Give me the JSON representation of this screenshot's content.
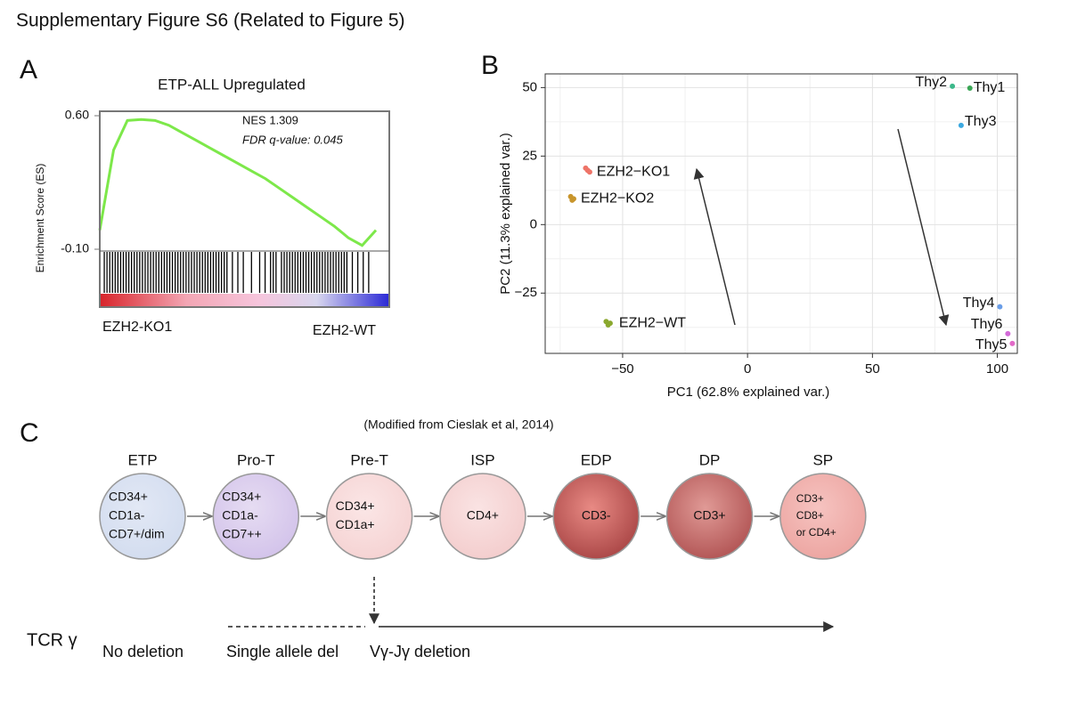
{
  "title": "Supplementary Figure S6  (Related to Figure 5)",
  "panel_labels": [
    "A",
    "B",
    "C"
  ],
  "chart_data": [
    {
      "type": "line",
      "title": "ETP-ALL Upregulated",
      "ylabel": "Enrichment Score (ES)",
      "values": [
        0,
        0.42,
        0.575,
        0.58,
        0.575,
        0.55,
        0.51,
        0.47,
        0.43,
        0.39,
        0.35,
        0.31,
        0.27,
        0.22,
        0.17,
        0.12,
        0.07,
        0.02,
        -0.04,
        -0.08,
        0
      ],
      "color": "#7de84a",
      "ylim": [
        -0.1,
        0.6
      ],
      "yticks": [
        {
          "value": 0.6,
          "label": "0.60"
        },
        {
          "value": -0.1,
          "label": "-0.10"
        }
      ],
      "annotations": [
        "NES  1.309",
        "FDR q-value:  0.045"
      ],
      "left_label": "EZH2-KO1",
      "right_label": "EZH2-WT",
      "hits": [
        1,
        2,
        3,
        4,
        5,
        6,
        7,
        8,
        9,
        10,
        11,
        12,
        13,
        14,
        15,
        16,
        17,
        18,
        19,
        20,
        21,
        22,
        23,
        24,
        25,
        26,
        27,
        28,
        29,
        30,
        31,
        32,
        33,
        34,
        35,
        36,
        37,
        38,
        39,
        40,
        41,
        42,
        43,
        44,
        45,
        46,
        48,
        50,
        52,
        55,
        58,
        60,
        62,
        63,
        64,
        66,
        67,
        68,
        69,
        70,
        71,
        72,
        73,
        74,
        75,
        76,
        77,
        78,
        79,
        80,
        81,
        82,
        83,
        84,
        85,
        86,
        87,
        88,
        89,
        90,
        92,
        94,
        96,
        98
      ]
    },
    {
      "type": "scatter",
      "xlabel": "PC1 (62.8% explained var.)",
      "ylabel": "PC2 (11.3% explained var.)",
      "xlim": [
        -81,
        108
      ],
      "ylim": [
        -47,
        55
      ],
      "xticks": [
        {
          "value": -50,
          "label": "−50"
        },
        0,
        50,
        100
      ],
      "yticks": [
        {
          "value": -25,
          "label": "−25"
        },
        0,
        25,
        50
      ],
      "minor_xticks": [
        -75,
        -25,
        25,
        75
      ],
      "minor_yticks": [
        -37.5,
        -12.5,
        12.5,
        37.5
      ],
      "grid": true,
      "series": [
        {
          "name": "EZH2−KO1",
          "color": "#ee7468",
          "x": [
            -64.8,
            -64.0,
            -63.2
          ],
          "values": [
            20.6,
            19.8,
            19.2
          ]
        },
        {
          "name": "EZH2−KO2",
          "color": "#c8952c",
          "x": [
            -70.8,
            -70.2,
            -69.6
          ],
          "values": [
            10.2,
            8.9,
            9.4
          ]
        },
        {
          "name": "EZH2−WT",
          "color": "#8aa82e",
          "x": [
            -56.6,
            -55.8,
            -55.0
          ],
          "values": [
            -35.4,
            -36.6,
            -36.0
          ]
        },
        {
          "name": "Thy2",
          "color": "#3cb88a",
          "x": [
            82
          ],
          "values": [
            50.5
          ]
        },
        {
          "name": "Thy1",
          "color": "#3aa655",
          "x": [
            89
          ],
          "values": [
            49.8
          ]
        },
        {
          "name": "Thy3",
          "color": "#3ba8e0",
          "x": [
            85.5
          ],
          "values": [
            36.2
          ]
        },
        {
          "name": "Thy4",
          "color": "#6a9ee8",
          "x": [
            101
          ],
          "values": [
            -30
          ]
        },
        {
          "name": "Thy6",
          "color": "#d36ad8",
          "x": [
            104.2
          ],
          "values": [
            -39.8
          ]
        },
        {
          "name": "Thy5",
          "color": "#e26ac8",
          "x": [
            106
          ],
          "values": [
            -43.4
          ]
        }
      ]
    }
  ],
  "diagram": {
    "note": "(Modified from Cieslak et al, 2014)",
    "nodes": [
      {
        "stage": "ETP",
        "markers": [
          "CD34+",
          "CD1a-",
          "CD7+/dim"
        ]
      },
      {
        "stage": "Pro-T",
        "markers": [
          "CD34+",
          "CD1a-",
          "CD7++"
        ]
      },
      {
        "stage": "Pre-T",
        "markers": [
          "CD34+",
          "CD1a+"
        ]
      },
      {
        "stage": "ISP",
        "markers": [
          "CD4+"
        ]
      },
      {
        "stage": "EDP",
        "markers": [
          "CD3-"
        ]
      },
      {
        "stage": "DP",
        "markers": [
          "CD3+"
        ]
      },
      {
        "stage": "SP",
        "markers": [
          "CD3+",
          "CD8+",
          "or CD4+"
        ]
      }
    ],
    "tcr": {
      "label": "TCR γ",
      "segments": [
        "No deletion",
        "Single allele del",
        "Vγ-Jγ deletion"
      ]
    }
  }
}
